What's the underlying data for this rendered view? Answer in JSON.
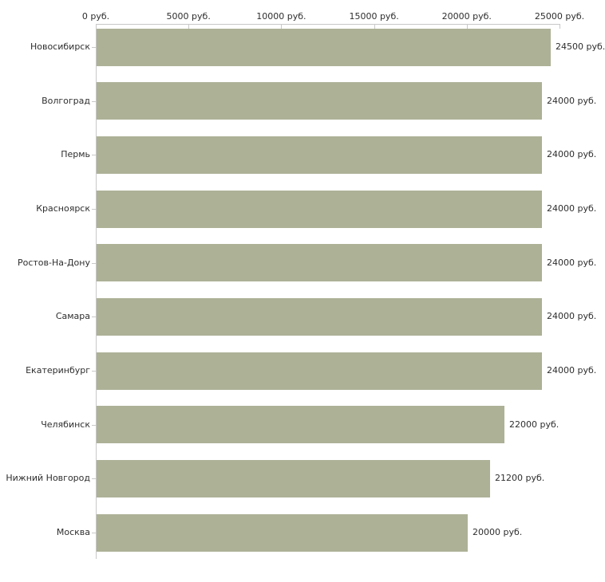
{
  "chart_data": {
    "type": "bar",
    "orientation": "horizontal",
    "title": "",
    "xlabel": "",
    "ylabel": "",
    "unit": "руб.",
    "categories": [
      "Новосибирск",
      "Волгоград",
      "Пермь",
      "Красноярск",
      "Ростов-На-Дону",
      "Самара",
      "Екатеринбург",
      "Челябинск",
      "Нижний Новгород",
      "Москва"
    ],
    "values": [
      24500,
      24000,
      24000,
      24000,
      24000,
      24000,
      24000,
      22000,
      21200,
      20000
    ],
    "value_labels": [
      "24500 руб.",
      "24000 руб.",
      "24000 руб.",
      "24000 руб.",
      "24000 руб.",
      "24000 руб.",
      "24000 руб.",
      "22000 руб.",
      "21200 руб.",
      "20000 руб."
    ],
    "x_axis": {
      "position": "top",
      "min": 0,
      "max": 25000,
      "ticks": [
        0,
        5000,
        10000,
        15000,
        20000,
        25000
      ],
      "tick_labels": [
        "0 руб.",
        "5000 руб.",
        "10000 руб.",
        "15000 руб.",
        "20000 руб.",
        "25000 руб."
      ]
    },
    "legend": null,
    "grid": false,
    "colors": {
      "bar": "#adb196",
      "axis": "#c8c8c8",
      "text": "#2e2e2e",
      "background": "#ffffff"
    }
  }
}
